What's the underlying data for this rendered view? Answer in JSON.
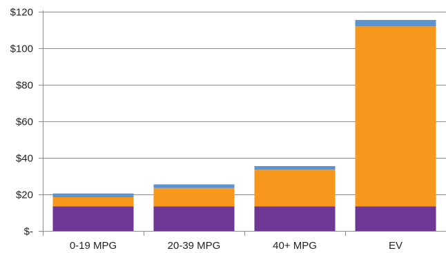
{
  "chart_data": {
    "type": "bar",
    "stacked": true,
    "title": "",
    "xlabel": "",
    "ylabel": "",
    "categories": [
      "0-19 MPG",
      "20-39 MPG",
      "40+ MPG",
      "EV"
    ],
    "ylim": [
      0,
      120
    ],
    "yticks": [
      0,
      20,
      40,
      60,
      80,
      100,
      120
    ],
    "ytick_labels": [
      "$-",
      "$20",
      "$40",
      "$60",
      "$80",
      "$100",
      "$120"
    ],
    "grid": true,
    "legend": "none",
    "series": [
      {
        "color": "#6e3796",
        "values": [
          13.5,
          13.5,
          13.5,
          13.5
        ]
      },
      {
        "color": "#f7981d",
        "values": [
          5.0,
          10.0,
          20.0,
          98.5
        ]
      },
      {
        "color": "#5b93d3",
        "values": [
          2.0,
          2.0,
          2.0,
          3.5
        ]
      }
    ]
  }
}
